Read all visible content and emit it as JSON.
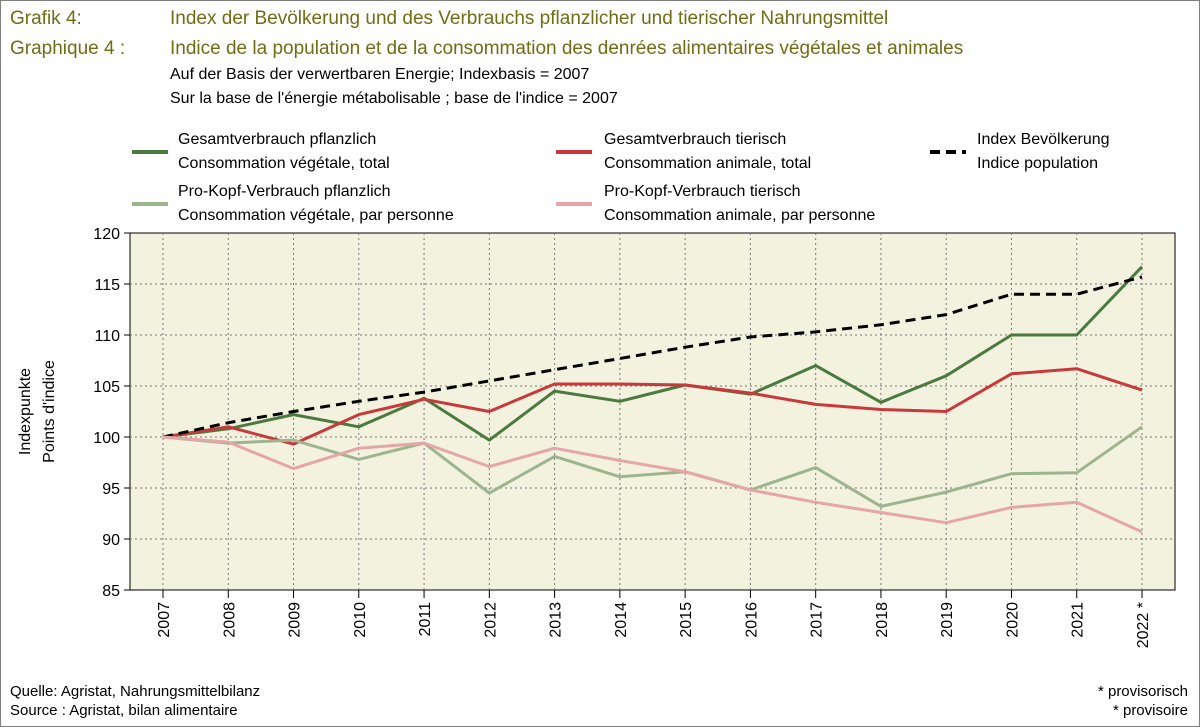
{
  "header": {
    "label_de": "Grafik 4:",
    "title_de": "Index der Bevölkerung und des Verbrauchs pflanzlicher und tierischer Nahrungsmittel",
    "label_fr": "Graphique 4 :",
    "title_fr": "Indice de la population et de la consommation des denrées alimentaires végétales et animales",
    "basis_de": "Auf der Basis der verwertbaren Energie; Indexbasis = 2007",
    "basis_fr": "Sur la base de l'énergie métabolisable ; base de l'indice = 2007"
  },
  "legend": {
    "veg_total_de": "Gesamtverbrauch pflanzlich",
    "veg_total_fr": "Consommation végétale, total",
    "ani_total_de": "Gesamtverbrauch tierisch",
    "ani_total_fr": "Consommation animale, total",
    "pop_de": "Index Bevölkerung",
    "pop_fr": "Indice population",
    "veg_pc_de": "Pro-Kopf-Verbrauch pflanzlich",
    "veg_pc_fr": "Consommation végétale, par personne",
    "ani_pc_de": "Pro-Kopf-Verbrauch tierisch",
    "ani_pc_fr": "Consommation animale, par personne"
  },
  "footer": {
    "source_de": "Quelle: Agristat, Nahrungsmittelbilanz",
    "source_fr": "Source : Agristat, bilan alimentaire",
    "note_de": "* provisorisch",
    "note_fr": "* provisoire"
  },
  "colors": {
    "veg_total": "#4a7a3e",
    "ani_total": "#c8393b",
    "population": "#000000",
    "veg_pc": "#9db58f",
    "ani_pc": "#e6a5a7",
    "plot_bg": "#f3f2df",
    "title": "#6e6e14"
  },
  "chart_data": {
    "type": "line",
    "title": "",
    "xlabel": "",
    "ylabel": "Indexpunkte\nPoints d'indice",
    "ylim": [
      85,
      120
    ],
    "yticks": [
      85,
      90,
      95,
      100,
      105,
      110,
      115,
      120
    ],
    "grid": true,
    "legend_position": "top",
    "x": [
      "2007",
      "2008",
      "2009",
      "2010",
      "2011",
      "2012",
      "2013",
      "2014",
      "2015",
      "2016",
      "2017",
      "2018",
      "2019",
      "2020",
      "2021",
      "2022 *"
    ],
    "series": [
      {
        "name": "Gesamtverbrauch pflanzlich / Consommation végétale, total",
        "key": "veg_total",
        "dashed": false,
        "values": [
          100.0,
          100.8,
          102.2,
          101.0,
          103.8,
          99.7,
          104.5,
          103.5,
          105.1,
          104.2,
          107.0,
          103.4,
          106.0,
          110.0,
          110.0,
          116.7
        ]
      },
      {
        "name": "Gesamtverbrauch tierisch / Consommation animale, total",
        "key": "ani_total",
        "dashed": false,
        "values": [
          100.0,
          101.0,
          99.3,
          102.2,
          103.7,
          102.5,
          105.2,
          105.2,
          105.1,
          104.3,
          103.2,
          102.7,
          102.5,
          106.2,
          106.7,
          104.6
        ]
      },
      {
        "name": "Index Bevölkerung / Indice population",
        "key": "population",
        "dashed": true,
        "values": [
          100.0,
          101.4,
          102.5,
          103.5,
          104.4,
          105.5,
          106.6,
          107.7,
          108.8,
          109.8,
          110.3,
          111.0,
          112.0,
          114.0,
          114.0,
          115.7
        ]
      },
      {
        "name": "Pro-Kopf-Verbrauch pflanzlich / Consommation végétale, par personne",
        "key": "veg_pc",
        "dashed": false,
        "values": [
          100.0,
          99.4,
          99.7,
          97.8,
          99.4,
          94.5,
          98.1,
          96.1,
          96.6,
          94.8,
          97.0,
          93.2,
          94.6,
          96.4,
          96.5,
          101.0
        ]
      },
      {
        "name": "Pro-Kopf-Verbrauch tierisch / Consommation animale, par personne",
        "key": "ani_pc",
        "dashed": false,
        "values": [
          100.0,
          99.5,
          96.9,
          98.9,
          99.4,
          97.1,
          98.9,
          97.7,
          96.6,
          94.8,
          93.6,
          92.6,
          91.6,
          93.1,
          93.6,
          90.7
        ]
      }
    ]
  }
}
